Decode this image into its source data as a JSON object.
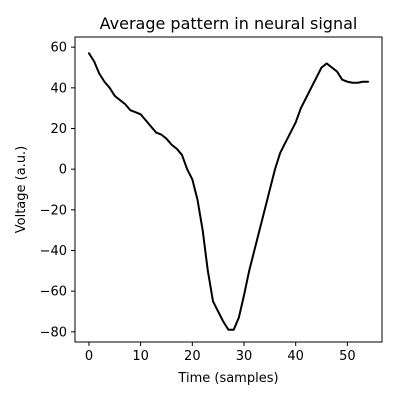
{
  "chart_data": {
    "type": "line",
    "title": "Average pattern in neural signal",
    "xlabel": "Time (samples)",
    "ylabel": "Voltage (a.u.)",
    "xlim": [
      -2.7,
      56.7
    ],
    "ylim": [
      -85,
      65
    ],
    "xticks": [
      0,
      10,
      20,
      30,
      40,
      50
    ],
    "xtick_labels": [
      "0",
      "10",
      "20",
      "30",
      "40",
      "50"
    ],
    "yticks": [
      60,
      40,
      20,
      0,
      -20,
      -40,
      -60,
      -80
    ],
    "ytick_labels": [
      "60",
      "40",
      "20",
      "0",
      "−20",
      "−40",
      "−60",
      "−80"
    ],
    "grid": false,
    "legend": false,
    "line_color": "#000000",
    "series": [
      {
        "x": [
          0,
          1,
          2,
          3,
          4,
          5,
          6,
          7,
          8,
          9,
          10,
          11,
          12,
          13,
          14,
          15,
          16,
          17,
          18,
          19,
          20,
          21,
          22,
          23,
          24,
          25,
          26,
          27,
          28,
          29,
          30,
          31,
          32,
          33,
          34,
          35,
          36,
          37,
          38,
          39,
          40,
          41,
          42,
          43,
          44,
          45,
          46,
          47,
          48,
          49,
          50,
          51,
          52,
          53,
          54
        ],
        "y": [
          57,
          53,
          47,
          43,
          40,
          36,
          34,
          32,
          29,
          28,
          27,
          24,
          21,
          18,
          17,
          15,
          12,
          10,
          7,
          0,
          -5,
          -15,
          -30,
          -50,
          -65,
          -70,
          -75,
          -79,
          -79,
          -73,
          -62,
          -50,
          -40,
          -30,
          -20,
          -10,
          0,
          8,
          13,
          18,
          23,
          30,
          35,
          40,
          45,
          50,
          52,
          50,
          48,
          44,
          43,
          42.5,
          42.5,
          43,
          43
        ]
      }
    ]
  }
}
